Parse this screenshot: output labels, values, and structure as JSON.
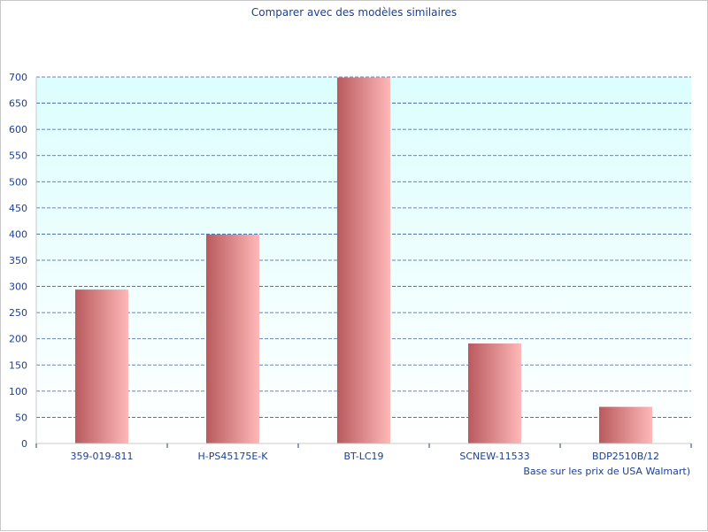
{
  "chart_data": {
    "type": "bar",
    "title": "Comparer avec des modèles similaires",
    "categories": [
      "359-019-811",
      "H-PS45175E-K",
      "BT-LC19",
      "SCNEW-11533",
      "BDP2510B/12"
    ],
    "values": [
      294,
      399,
      699,
      191,
      70
    ],
    "ylim": [
      0,
      700
    ],
    "ytick_step": 50,
    "yticks": [
      "0",
      "50",
      "100",
      "150",
      "200",
      "250",
      "300",
      "350",
      "400",
      "450",
      "500",
      "550",
      "600",
      "650",
      "700"
    ],
    "grid": true,
    "note": "Base sur les prix de USA Walmart)",
    "colors": {
      "plot_bg_top": "#dcfefe",
      "plot_bg_bottom": "#ffffff",
      "bar_dark": "#b85a5e",
      "bar_light": "#ffb8b8",
      "grid": "#1c3f94",
      "text": "#1c3f94"
    }
  }
}
